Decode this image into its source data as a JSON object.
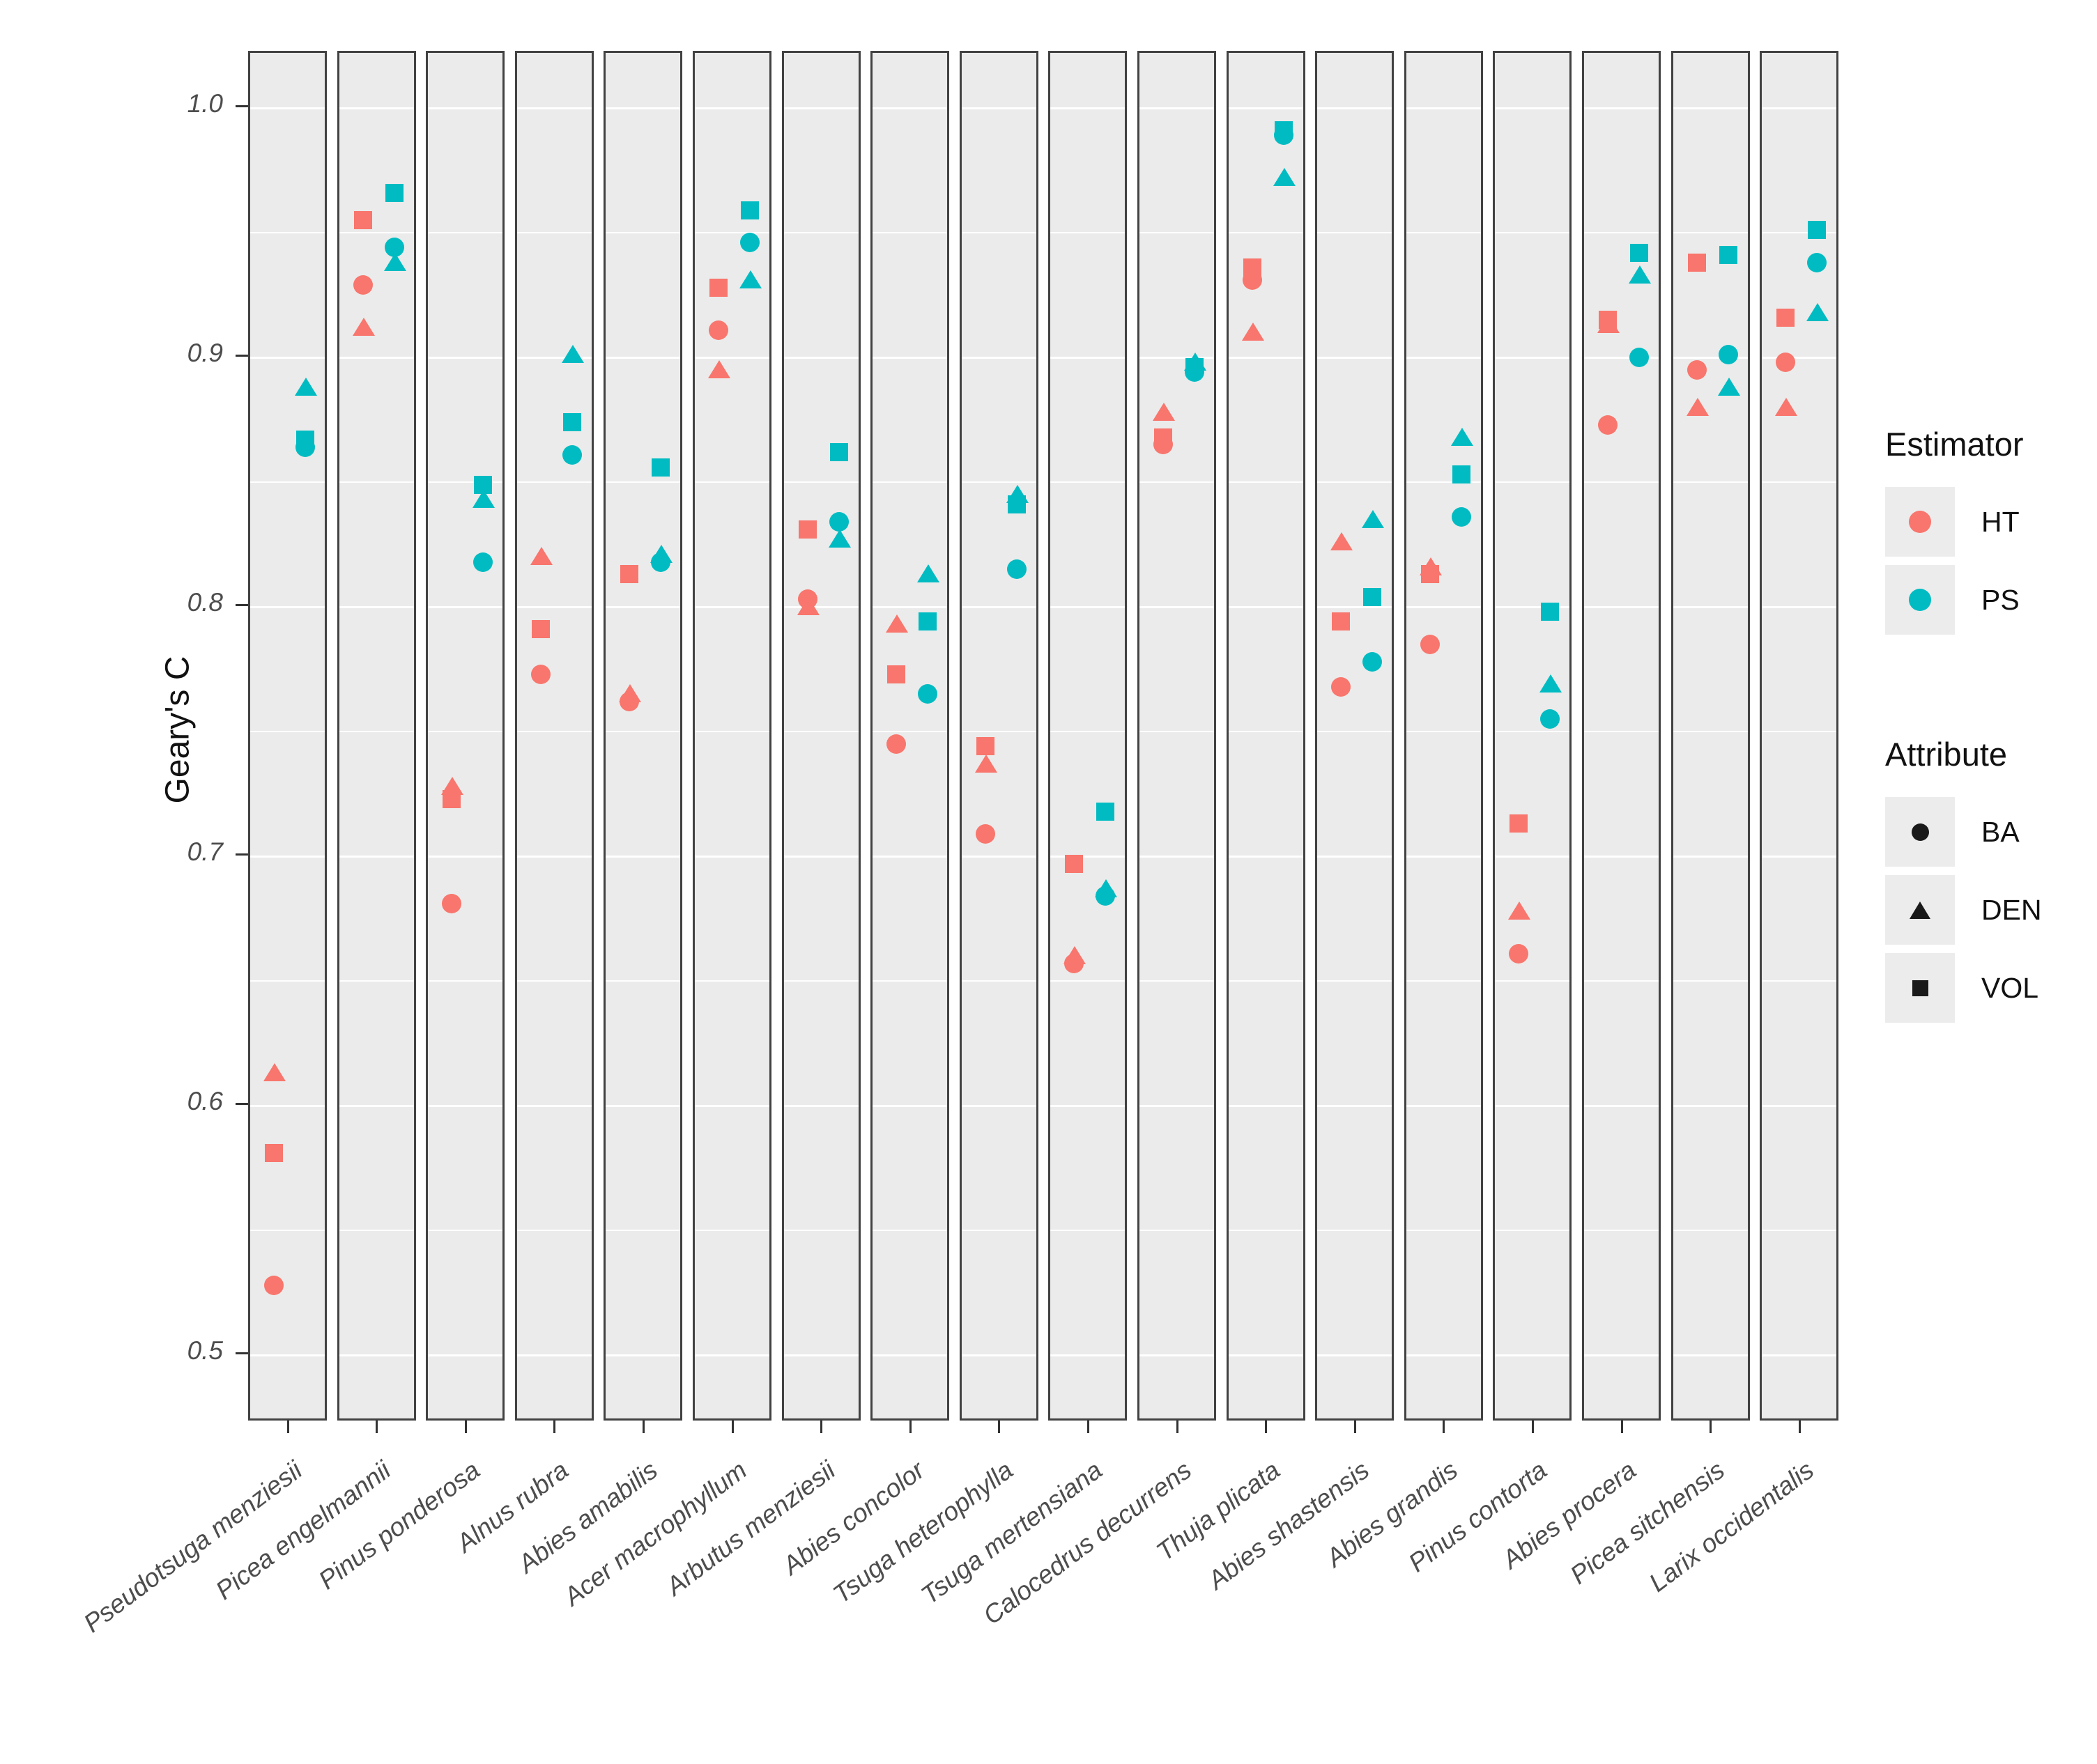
{
  "chart_data": {
    "type": "scatter",
    "facets": "species (18 panels, shared y axis)",
    "ylabel": "Geary's C",
    "y_ticks": [
      1.0,
      0.9,
      0.8,
      0.7,
      0.6,
      0.5
    ],
    "y_tick_labels": [
      "1.0",
      "0.9",
      "0.8",
      "0.7",
      "0.6",
      "0.5"
    ],
    "y_minor_gridlines": [
      0.95,
      0.85,
      0.75,
      0.65,
      0.55
    ],
    "ylim": [
      0.473,
      1.022
    ],
    "grid": "white major+minor gridlines on grey panels",
    "legend_position": "right",
    "panel_bg": "#EBEBEB",
    "colors": {
      "HT": "#F8766D",
      "PS": "#00BCC2"
    },
    "legend_estimator": {
      "title": "Estimator",
      "entries": [
        {
          "label": "HT",
          "color": "#F8766D",
          "marker": "circle"
        },
        {
          "label": "PS",
          "color": "#00BCC2",
          "marker": "circle"
        }
      ]
    },
    "legend_attribute": {
      "title": "Attribute",
      "entries": [
        {
          "label": "BA",
          "marker": "circle",
          "color": "#1A1A1A"
        },
        {
          "label": "DEN",
          "marker": "triangle",
          "color": "#1A1A1A"
        },
        {
          "label": "VOL",
          "marker": "square",
          "color": "#1A1A1A"
        }
      ]
    },
    "panels": [
      {
        "species": "Pseudotsuga menziesii",
        "HT": {
          "BA": 0.528,
          "DEN": 0.613,
          "VOL": 0.581
        },
        "PS": {
          "BA": 0.864,
          "DEN": 0.888,
          "VOL": 0.867
        }
      },
      {
        "species": "Picea engelmannii",
        "HT": {
          "BA": 0.929,
          "DEN": 0.912,
          "VOL": 0.955
        },
        "PS": {
          "BA": 0.944,
          "DEN": 0.938,
          "VOL": 0.966
        }
      },
      {
        "species": "Pinus ponderosa",
        "HT": {
          "BA": 0.681,
          "DEN": 0.728,
          "VOL": 0.723
        },
        "PS": {
          "BA": 0.818,
          "DEN": 0.843,
          "VOL": 0.849
        }
      },
      {
        "species": "Alnus rubra",
        "HT": {
          "BA": 0.773,
          "DEN": 0.82,
          "VOL": 0.791
        },
        "PS": {
          "BA": 0.861,
          "DEN": 0.901,
          "VOL": 0.874
        }
      },
      {
        "species": "Abies amabilis",
        "HT": {
          "BA": 0.762,
          "DEN": 0.765,
          "VOL": 0.813
        },
        "PS": {
          "BA": 0.818,
          "DEN": 0.821,
          "VOL": 0.856
        }
      },
      {
        "species": "Acer macrophyllum",
        "HT": {
          "BA": 0.911,
          "DEN": 0.895,
          "VOL": 0.928
        },
        "PS": {
          "BA": 0.946,
          "DEN": 0.931,
          "VOL": 0.959
        }
      },
      {
        "species": "Arbutus menziesii",
        "HT": {
          "BA": 0.803,
          "DEN": 0.8,
          "VOL": 0.831
        },
        "PS": {
          "BA": 0.834,
          "DEN": 0.827,
          "VOL": 0.862
        }
      },
      {
        "species": "Abies concolor",
        "HT": {
          "BA": 0.745,
          "DEN": 0.793,
          "VOL": 0.773
        },
        "PS": {
          "BA": 0.765,
          "DEN": 0.813,
          "VOL": 0.794
        }
      },
      {
        "species": "Tsuga heterophylla",
        "HT": {
          "BA": 0.709,
          "DEN": 0.737,
          "VOL": 0.744
        },
        "PS": {
          "BA": 0.815,
          "DEN": 0.845,
          "VOL": 0.841
        }
      },
      {
        "species": "Tsuga mertensiana",
        "HT": {
          "BA": 0.657,
          "DEN": 0.66,
          "VOL": 0.697
        },
        "PS": {
          "BA": 0.684,
          "DEN": 0.687,
          "VOL": 0.718
        }
      },
      {
        "species": "Calocedrus decurrens",
        "HT": {
          "BA": 0.865,
          "DEN": 0.878,
          "VOL": 0.868
        },
        "PS": {
          "BA": 0.894,
          "DEN": 0.898,
          "VOL": 0.896
        }
      },
      {
        "species": "Thuja plicata",
        "HT": {
          "BA": 0.931,
          "DEN": 0.91,
          "VOL": 0.936
        },
        "PS": {
          "BA": 0.989,
          "DEN": 0.972,
          "VOL": 0.991
        }
      },
      {
        "species": "Abies shastensis",
        "HT": {
          "BA": 0.768,
          "DEN": 0.826,
          "VOL": 0.794
        },
        "PS": {
          "BA": 0.778,
          "DEN": 0.835,
          "VOL": 0.804
        }
      },
      {
        "species": "Abies grandis",
        "HT": {
          "BA": 0.785,
          "DEN": 0.816,
          "VOL": 0.813
        },
        "PS": {
          "BA": 0.836,
          "DEN": 0.868,
          "VOL": 0.853
        }
      },
      {
        "species": "Pinus contorta",
        "HT": {
          "BA": 0.661,
          "DEN": 0.678,
          "VOL": 0.713
        },
        "PS": {
          "BA": 0.755,
          "DEN": 0.769,
          "VOL": 0.798
        }
      },
      {
        "species": "Abies procera",
        "HT": {
          "BA": 0.873,
          "DEN": 0.913,
          "VOL": 0.915
        },
        "PS": {
          "BA": 0.9,
          "DEN": 0.933,
          "VOL": 0.942
        }
      },
      {
        "species": "Picea sitchensis",
        "HT": {
          "BA": 0.895,
          "DEN": 0.88,
          "VOL": 0.938
        },
        "PS": {
          "BA": 0.901,
          "DEN": 0.888,
          "VOL": 0.941
        }
      },
      {
        "species": "Larix occidentalis",
        "HT": {
          "BA": 0.898,
          "DEN": 0.88,
          "VOL": 0.916
        },
        "PS": {
          "BA": 0.938,
          "DEN": 0.918,
          "VOL": 0.951
        }
      }
    ]
  }
}
